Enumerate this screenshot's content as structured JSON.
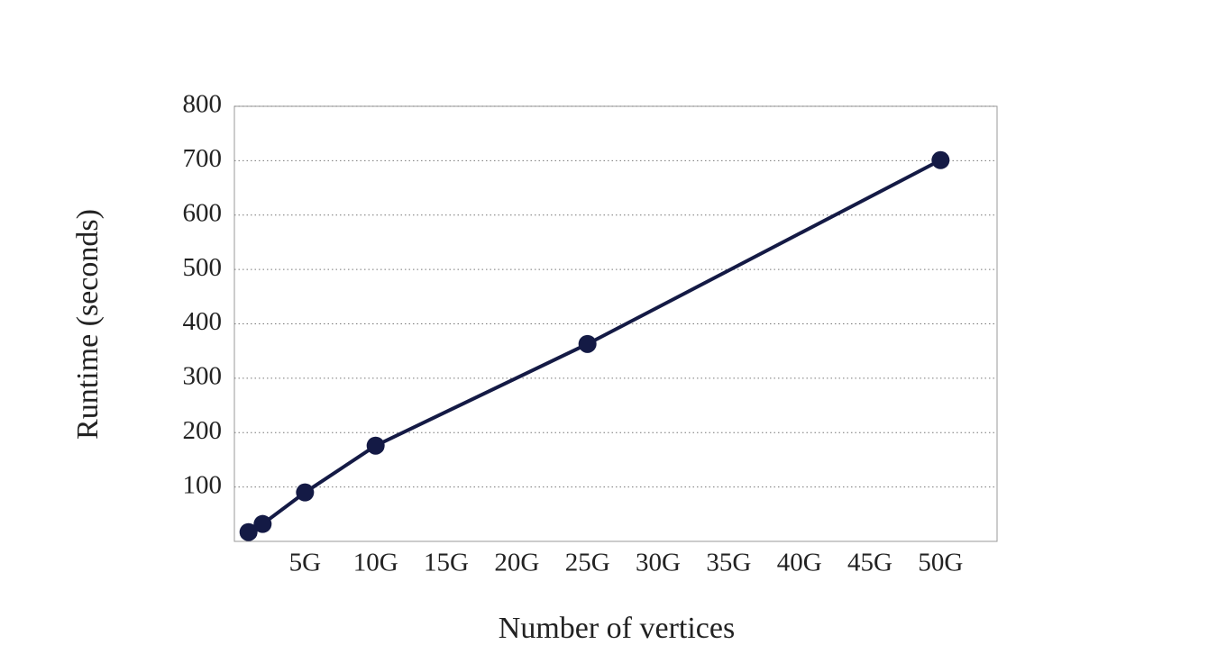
{
  "chart_data": {
    "type": "line",
    "x_label": "Number of vertices",
    "y_label": "Runtime (seconds)",
    "x": [
      1,
      2,
      5,
      10,
      25,
      50
    ],
    "series": [
      {
        "name": "Runtime",
        "color": "#141a45",
        "values": [
          17,
          32,
          90,
          176,
          363,
          701
        ]
      }
    ],
    "xlim": [
      0,
      54
    ],
    "xticks": [
      {
        "value": 5,
        "label": "5G"
      },
      {
        "value": 10,
        "label": "10G"
      },
      {
        "value": 15,
        "label": "15G"
      },
      {
        "value": 20,
        "label": "20G"
      },
      {
        "value": 25,
        "label": "25G"
      },
      {
        "value": 30,
        "label": "30G"
      },
      {
        "value": 35,
        "label": "35G"
      },
      {
        "value": 40,
        "label": "40G"
      },
      {
        "value": 45,
        "label": "45G"
      },
      {
        "value": 50,
        "label": "50G"
      }
    ],
    "ylim": [
      0,
      800
    ],
    "yticks": [
      100,
      200,
      300,
      400,
      500,
      600,
      700,
      800
    ],
    "grid": true
  }
}
